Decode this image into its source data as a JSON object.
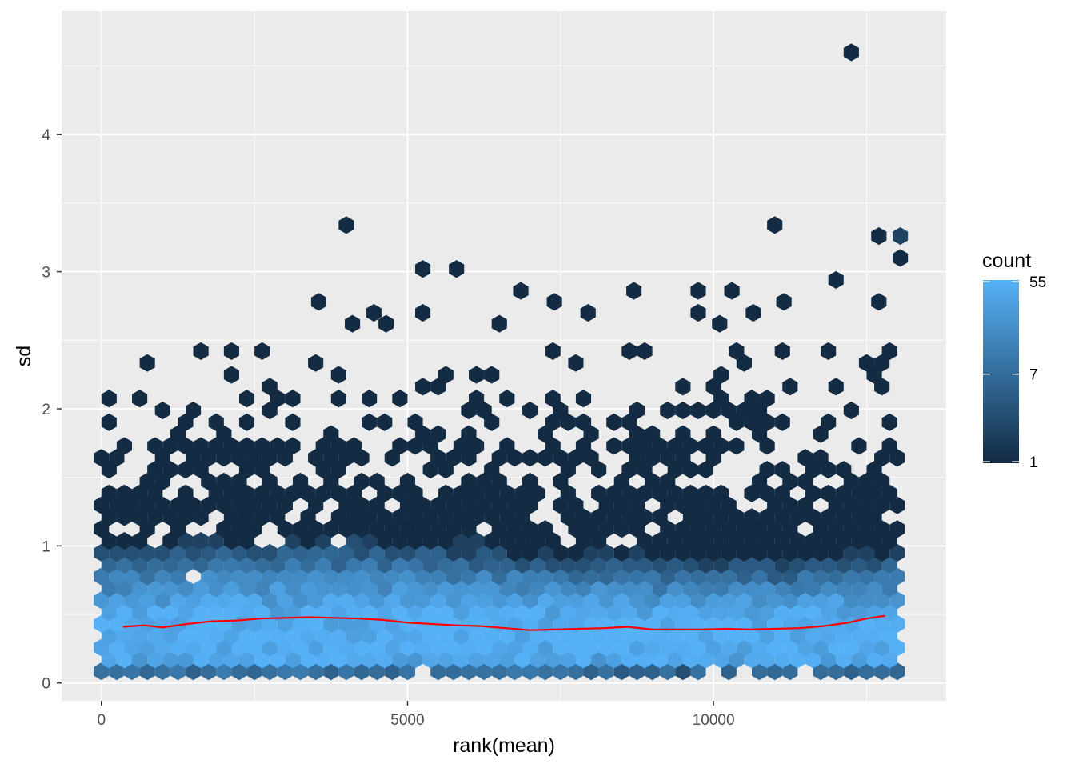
{
  "chart_data": {
    "type": "hexbin",
    "xlabel": "rank(mean)",
    "ylabel": "sd",
    "xlim": [
      -650,
      13800
    ],
    "ylim": [
      -0.13,
      4.9
    ],
    "x_ticks": [
      0,
      5000,
      10000
    ],
    "x_tick_labels": [
      "0",
      "5000",
      "10000"
    ],
    "y_ticks": [
      0,
      1,
      2,
      3,
      4
    ],
    "y_tick_labels": [
      "0",
      "1",
      "2",
      "3",
      "4"
    ],
    "grid": true,
    "legend": {
      "title": "count",
      "position": "right",
      "scale": "log",
      "min": 1,
      "max": 55,
      "breaks": [
        1,
        7,
        55
      ],
      "labels": [
        "1",
        "7",
        "55"
      ],
      "color_low": "#132b43",
      "color_high": "#56b1f7"
    },
    "trend_line": {
      "color": "#ff0000",
      "x": [
        350,
        700,
        1000,
        1400,
        1800,
        2200,
        2600,
        3000,
        3400,
        3800,
        4200,
        4600,
        5000,
        5400,
        5800,
        6200,
        6600,
        7000,
        7400,
        7800,
        8200,
        8600,
        9000,
        9400,
        9800,
        10200,
        10600,
        11000,
        11400,
        11800,
        12200,
        12500,
        12800
      ],
      "y": [
        0.41,
        0.42,
        0.405,
        0.43,
        0.45,
        0.455,
        0.47,
        0.475,
        0.48,
        0.475,
        0.47,
        0.46,
        0.44,
        0.43,
        0.42,
        0.415,
        0.4,
        0.385,
        0.39,
        0.395,
        0.4,
        0.41,
        0.39,
        0.39,
        0.39,
        0.395,
        0.39,
        0.395,
        0.4,
        0.415,
        0.44,
        0.47,
        0.49
      ]
    },
    "outlier_hexes": [
      {
        "x": 12250,
        "y": 4.6,
        "count": 1
      },
      {
        "x": 4000,
        "y": 3.34,
        "count": 1
      },
      {
        "x": 11000,
        "y": 3.34,
        "count": 1
      },
      {
        "x": 12700,
        "y": 3.26,
        "count": 1
      },
      {
        "x": 13050,
        "y": 3.26,
        "count": 2
      },
      {
        "x": 13050,
        "y": 3.1,
        "count": 1
      },
      {
        "x": 5250,
        "y": 3.02,
        "count": 1
      },
      {
        "x": 5800,
        "y": 3.02,
        "count": 1
      },
      {
        "x": 12000,
        "y": 2.94,
        "count": 1
      },
      {
        "x": 6850,
        "y": 2.86,
        "count": 1
      },
      {
        "x": 8700,
        "y": 2.86,
        "count": 1
      },
      {
        "x": 9750,
        "y": 2.86,
        "count": 1
      },
      {
        "x": 10300,
        "y": 2.86,
        "count": 1
      },
      {
        "x": 3550,
        "y": 2.78,
        "count": 1
      },
      {
        "x": 7400,
        "y": 2.78,
        "count": 1
      },
      {
        "x": 11150,
        "y": 2.78,
        "count": 1
      },
      {
        "x": 12700,
        "y": 2.78,
        "count": 1
      },
      {
        "x": 4450,
        "y": 2.7,
        "count": 1
      },
      {
        "x": 5250,
        "y": 2.7,
        "count": 1
      },
      {
        "x": 7950,
        "y": 2.7,
        "count": 1
      },
      {
        "x": 9750,
        "y": 2.7,
        "count": 1
      },
      {
        "x": 10650,
        "y": 2.7,
        "count": 1
      },
      {
        "x": 4100,
        "y": 2.62,
        "count": 1
      },
      {
        "x": 4650,
        "y": 2.62,
        "count": 1
      },
      {
        "x": 6500,
        "y": 2.62,
        "count": 1
      },
      {
        "x": 10100,
        "y": 2.62,
        "count": 1
      }
    ]
  }
}
